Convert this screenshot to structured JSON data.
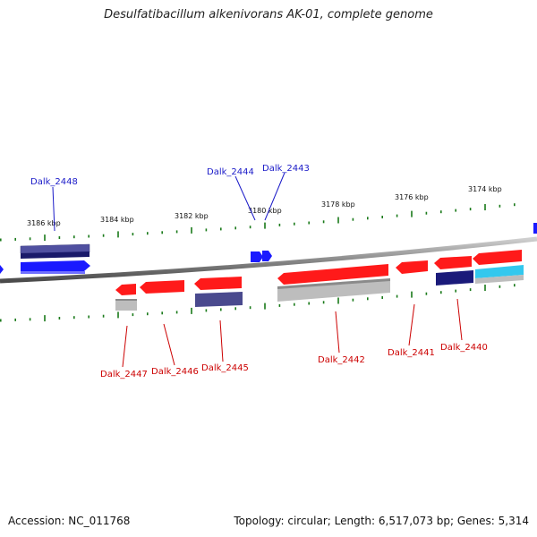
{
  "title": "Desulfatibacillum alkenivorans AK-01, complete genome",
  "footer": {
    "accession": "Accession: NC_011768",
    "stats": "Topology: circular; Length: 6,517,073 bp; Genes: 5,314"
  },
  "colors": {
    "plus_strand_label": "#1a1ac8",
    "minus_strand_label": "#cc0000",
    "tick": "#1a7a1a",
    "backbone": "#888888",
    "gene_red": "#ff1a1a",
    "gene_blue": "#1a1aff",
    "gene_navy": "#1a1a7a",
    "gene_slate": "#4a4a8e",
    "gene_gray": "#b8b8b8",
    "gene_cyan": "#33c8ee"
  },
  "kbp_labels": [
    "3186 kbp",
    "3184 kbp",
    "3182 kbp",
    "3180 kbp",
    "3178 kbp",
    "3176 kbp",
    "3174 kbp"
  ],
  "gene_labels": {
    "top": [
      "Dalk_2448",
      "Dalk_2444",
      "Dalk_2443"
    ],
    "bottom": [
      "Dalk_2447",
      "Dalk_2446",
      "Dalk_2445",
      "Dalk_2442",
      "Dalk_2441",
      "Dalk_2440"
    ]
  }
}
